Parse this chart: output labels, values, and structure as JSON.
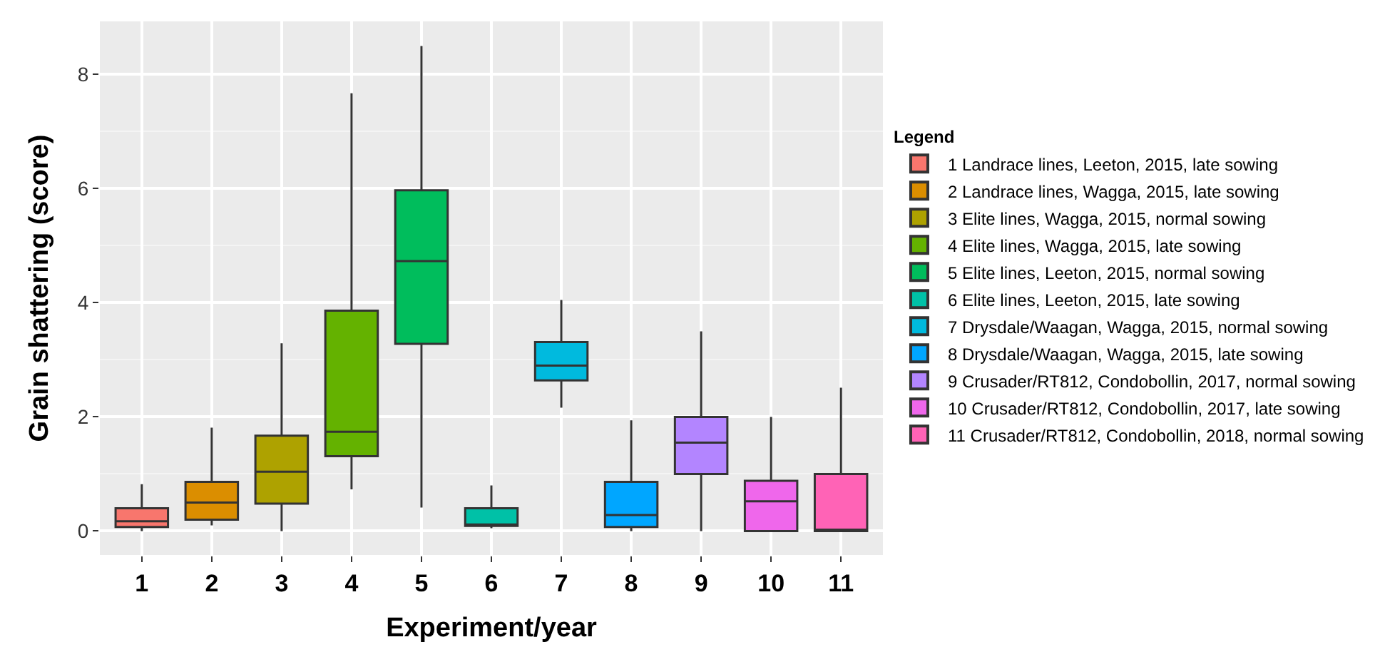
{
  "chart_data": {
    "type": "box",
    "xlabel": "Experiment/year",
    "ylabel": "Grain shattering (score)",
    "legend_title": "Legend",
    "categories": [
      "1",
      "2",
      "3",
      "4",
      "5",
      "6",
      "7",
      "8",
      "9",
      "10",
      "11"
    ],
    "ylim": [
      -0.42,
      8.93
    ],
    "yticks": [
      0,
      2,
      4,
      6,
      8
    ],
    "grid": true,
    "legend": "right",
    "series": [
      {
        "name": "1 Landrace lines, Leeton, 2015, late sowing",
        "color": "#f8766d",
        "x": [
          "1"
        ],
        "boxes": [
          {
            "low": 0,
            "q1": 0.07,
            "median": 0.17,
            "q3": 0.4,
            "high": 0.82
          }
        ]
      },
      {
        "name": "2 Landrace lines, Wagga, 2015, late sowing",
        "color": "#db8e00",
        "x": [
          "2"
        ],
        "boxes": [
          {
            "low": 0.1,
            "q1": 0.2,
            "median": 0.5,
            "q3": 0.86,
            "high": 1.81
          }
        ]
      },
      {
        "name": "3 Elite lines, Wagga, 2015, normal sowing",
        "color": "#aea200",
        "x": [
          "3"
        ],
        "boxes": [
          {
            "low": 0,
            "q1": 0.48,
            "median": 1.04,
            "q3": 1.67,
            "high": 3.29
          }
        ]
      },
      {
        "name": "4 Elite lines, Wagga, 2015, late sowing",
        "color": "#64b200",
        "x": [
          "4"
        ],
        "boxes": [
          {
            "low": 0.73,
            "q1": 1.31,
            "median": 1.74,
            "q3": 3.86,
            "high": 7.67
          }
        ]
      },
      {
        "name": "5 Elite lines, Leeton, 2015, normal sowing",
        "color": "#00bd5c",
        "x": [
          "5"
        ],
        "boxes": [
          {
            "low": 0.41,
            "q1": 3.28,
            "median": 4.73,
            "q3": 5.97,
            "high": 8.5
          }
        ]
      },
      {
        "name": "6 Elite lines, Leeton, 2015, late sowing",
        "color": "#00c1a7",
        "x": [
          "6"
        ],
        "boxes": [
          {
            "low": 0.05,
            "q1": 0.09,
            "median": 0.09,
            "q3": 0.4,
            "high": 0.8
          }
        ]
      },
      {
        "name": "7 Drysdale/Waagan, Wagga, 2015, normal sowing",
        "color": "#00bade",
        "x": [
          "7"
        ],
        "boxes": [
          {
            "low": 2.16,
            "q1": 2.64,
            "median": 2.9,
            "q3": 3.31,
            "high": 4.05
          }
        ]
      },
      {
        "name": "8 Drysdale/Waagan, Wagga, 2015, late sowing",
        "color": "#00a6ff",
        "x": [
          "8"
        ],
        "boxes": [
          {
            "low": 0,
            "q1": 0.07,
            "median": 0.28,
            "q3": 0.86,
            "high": 1.94
          }
        ]
      },
      {
        "name": "9 Crusader/RT812, Condobollin, 2017, normal sowing",
        "color": "#b385ff",
        "x": [
          "9"
        ],
        "boxes": [
          {
            "low": 0,
            "q1": 1.0,
            "median": 1.55,
            "q3": 2.0,
            "high": 3.5
          }
        ]
      },
      {
        "name": "10 Crusader/RT812, Condobollin, 2017, late sowing",
        "color": "#ef67eb",
        "x": [
          "10"
        ],
        "boxes": [
          {
            "low": 0,
            "q1": 0,
            "median": 0.52,
            "q3": 0.88,
            "high": 2.0
          }
        ]
      },
      {
        "name": "11 Crusader/RT812, Condobollin, 2018, normal sowing",
        "color": "#ff63b6",
        "x": [
          "11"
        ],
        "boxes": [
          {
            "low": 0,
            "q1": 0,
            "median": 0,
            "q3": 1.0,
            "high": 2.51
          }
        ]
      }
    ]
  }
}
